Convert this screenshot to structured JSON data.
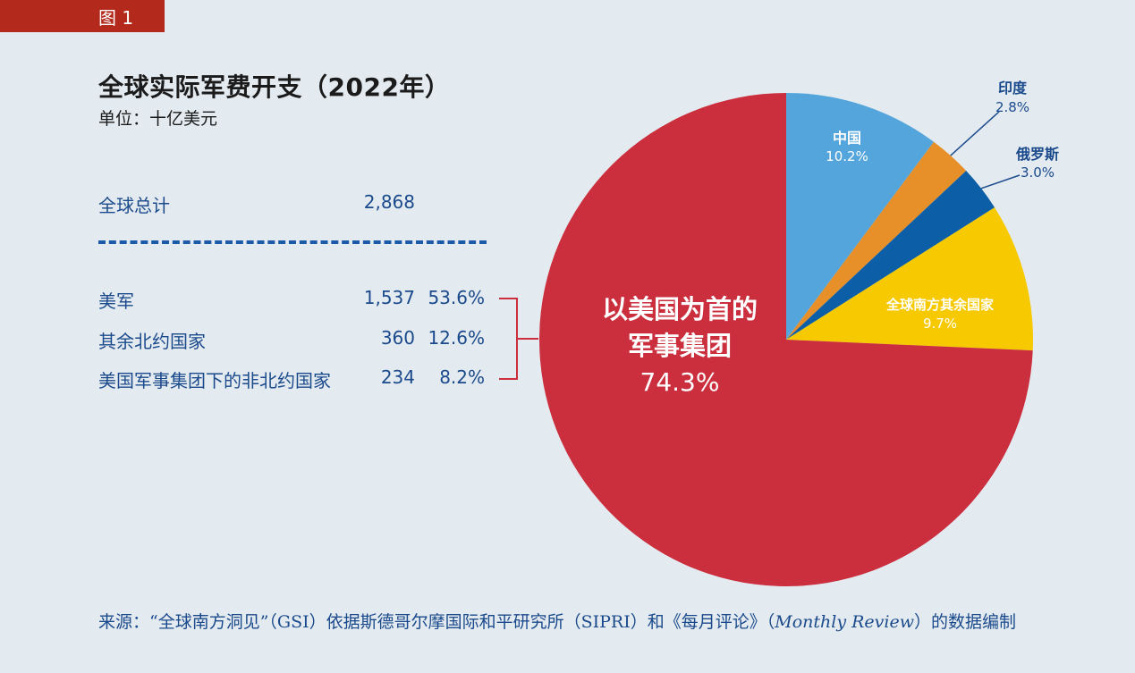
{
  "figure_tag": "图 1",
  "colors": {
    "header_red": "#b32a1c",
    "text_blue": "#1b4a8c",
    "slice_red": "#cb2f3e",
    "slice_lightblue": "#53a5dc",
    "slice_orange": "#e78f28",
    "slice_darkblue": "#0c5ea6",
    "slice_yellow": "#f6c900"
  },
  "table": {
    "total": {
      "label": "全球总计",
      "value": "2,868"
    },
    "rows": [
      {
        "label": "美军",
        "value": "1,537",
        "pct": "53.6%"
      },
      {
        "label": "其余北约国家",
        "value": "360",
        "pct": "12.6%"
      },
      {
        "label": "美国军事集团下的非北约国家",
        "value": "234",
        "pct": "8.2%"
      }
    ]
  },
  "chart_data": {
    "type": "pie",
    "title": "全球实际军费开支（2022年）",
    "subtitle": "单位：十亿美元",
    "slices": [
      {
        "name": "中国",
        "value": 10.2,
        "label": "10.2%",
        "color": "#53a5dc"
      },
      {
        "name": "印度",
        "value": 2.8,
        "label": "2.8%",
        "color": "#e78f28"
      },
      {
        "name": "俄罗斯",
        "value": 3.0,
        "label": "3.0%",
        "color": "#0c5ea6"
      },
      {
        "name": "全球南方其余国家",
        "value": 9.7,
        "label": "9.7%",
        "color": "#f6c900"
      },
      {
        "name_line1": "以美国为首的",
        "name_line2": "军事集团",
        "name": "以美国为首的军事集团",
        "value": 74.3,
        "label": "74.3%",
        "color": "#cb2f3e"
      }
    ]
  },
  "source": {
    "prefix": "来源：“全球南方洞见”（GSI）依据斯德哥尔摩国际和平研究所（SIPRI）和《每月评论》（",
    "italic": "Monthly Review",
    "suffix": "）的数据编制"
  }
}
